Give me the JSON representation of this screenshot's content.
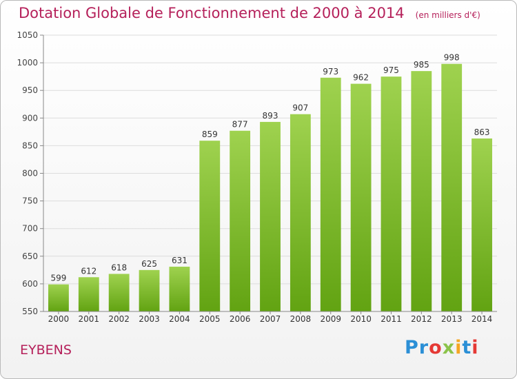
{
  "header": {
    "title": "Dotation Globale de Fonctionnement de 2000 à 2014",
    "unit": "(en milliers d'€)"
  },
  "footer": {
    "city": "EYBENS",
    "logo_letters": [
      {
        "ch": "P",
        "color": "#2b8fd6"
      },
      {
        "ch": "r",
        "color": "#2b8fd6"
      },
      {
        "ch": "o",
        "color": "#e53935"
      },
      {
        "ch": "x",
        "color": "#8bc34a"
      },
      {
        "ch": "i",
        "color": "#f5a623"
      },
      {
        "ch": "t",
        "color": "#2b8fd6"
      },
      {
        "ch": "i",
        "color": "#e53935"
      }
    ]
  },
  "chart_data": {
    "type": "bar",
    "title": "Dotation Globale de Fonctionnement de 2000 à 2014",
    "subtitle": "(en milliers d'€)",
    "categories": [
      "2000",
      "2001",
      "2002",
      "2003",
      "2004",
      "2005",
      "2006",
      "2007",
      "2008",
      "2009",
      "2010",
      "2011",
      "2012",
      "2013",
      "2014"
    ],
    "values": [
      599,
      612,
      618,
      625,
      631,
      859,
      877,
      893,
      907,
      973,
      962,
      975,
      985,
      998,
      863
    ],
    "ylim": [
      550,
      1050
    ],
    "yticks": [
      550,
      600,
      650,
      700,
      750,
      800,
      850,
      900,
      950,
      1000,
      1050
    ],
    "grid": true,
    "bar_color": "#7cbf2e",
    "data_labels": true
  }
}
